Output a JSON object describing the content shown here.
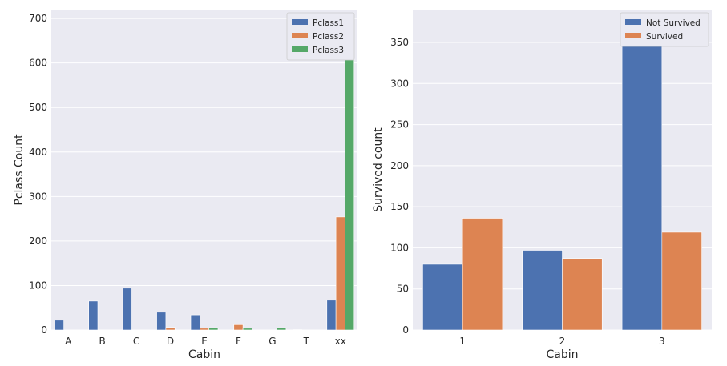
{
  "chart_data": [
    {
      "type": "bar",
      "categories": [
        "A",
        "B",
        "C",
        "D",
        "E",
        "F",
        "G",
        "T",
        "xx"
      ],
      "series": [
        {
          "name": "Pclass1",
          "color": "#4c72b0",
          "values": [
            22,
            65,
            94,
            40,
            34,
            0,
            0,
            1,
            67
          ]
        },
        {
          "name": "Pclass2",
          "color": "#dd8452",
          "values": [
            0,
            0,
            0,
            6,
            4,
            12,
            0,
            0,
            254
          ]
        },
        {
          "name": "Pclass3",
          "color": "#55a868",
          "values": [
            0,
            0,
            0,
            0,
            5,
            4,
            5,
            0,
            691
          ]
        }
      ],
      "xlabel": "Cabin",
      "ylabel": "Pclass Count",
      "ylim": [
        0,
        720
      ],
      "yticks": [
        0,
        100,
        200,
        300,
        400,
        500,
        600,
        700
      ],
      "grid": true,
      "legend_position": "top-right"
    },
    {
      "type": "bar",
      "categories": [
        "1",
        "2",
        "3"
      ],
      "series": [
        {
          "name": "Not Survived",
          "color": "#4c72b0",
          "values": [
            80,
            97,
            372
          ]
        },
        {
          "name": "Survived",
          "color": "#dd8452",
          "values": [
            136,
            87,
            119
          ]
        }
      ],
      "xlabel": "Cabin",
      "ylabel": "Survived count",
      "ylim": [
        0,
        390
      ],
      "yticks": [
        0,
        50,
        100,
        150,
        200,
        250,
        300,
        350
      ],
      "grid": true,
      "legend_position": "top-right"
    }
  ]
}
